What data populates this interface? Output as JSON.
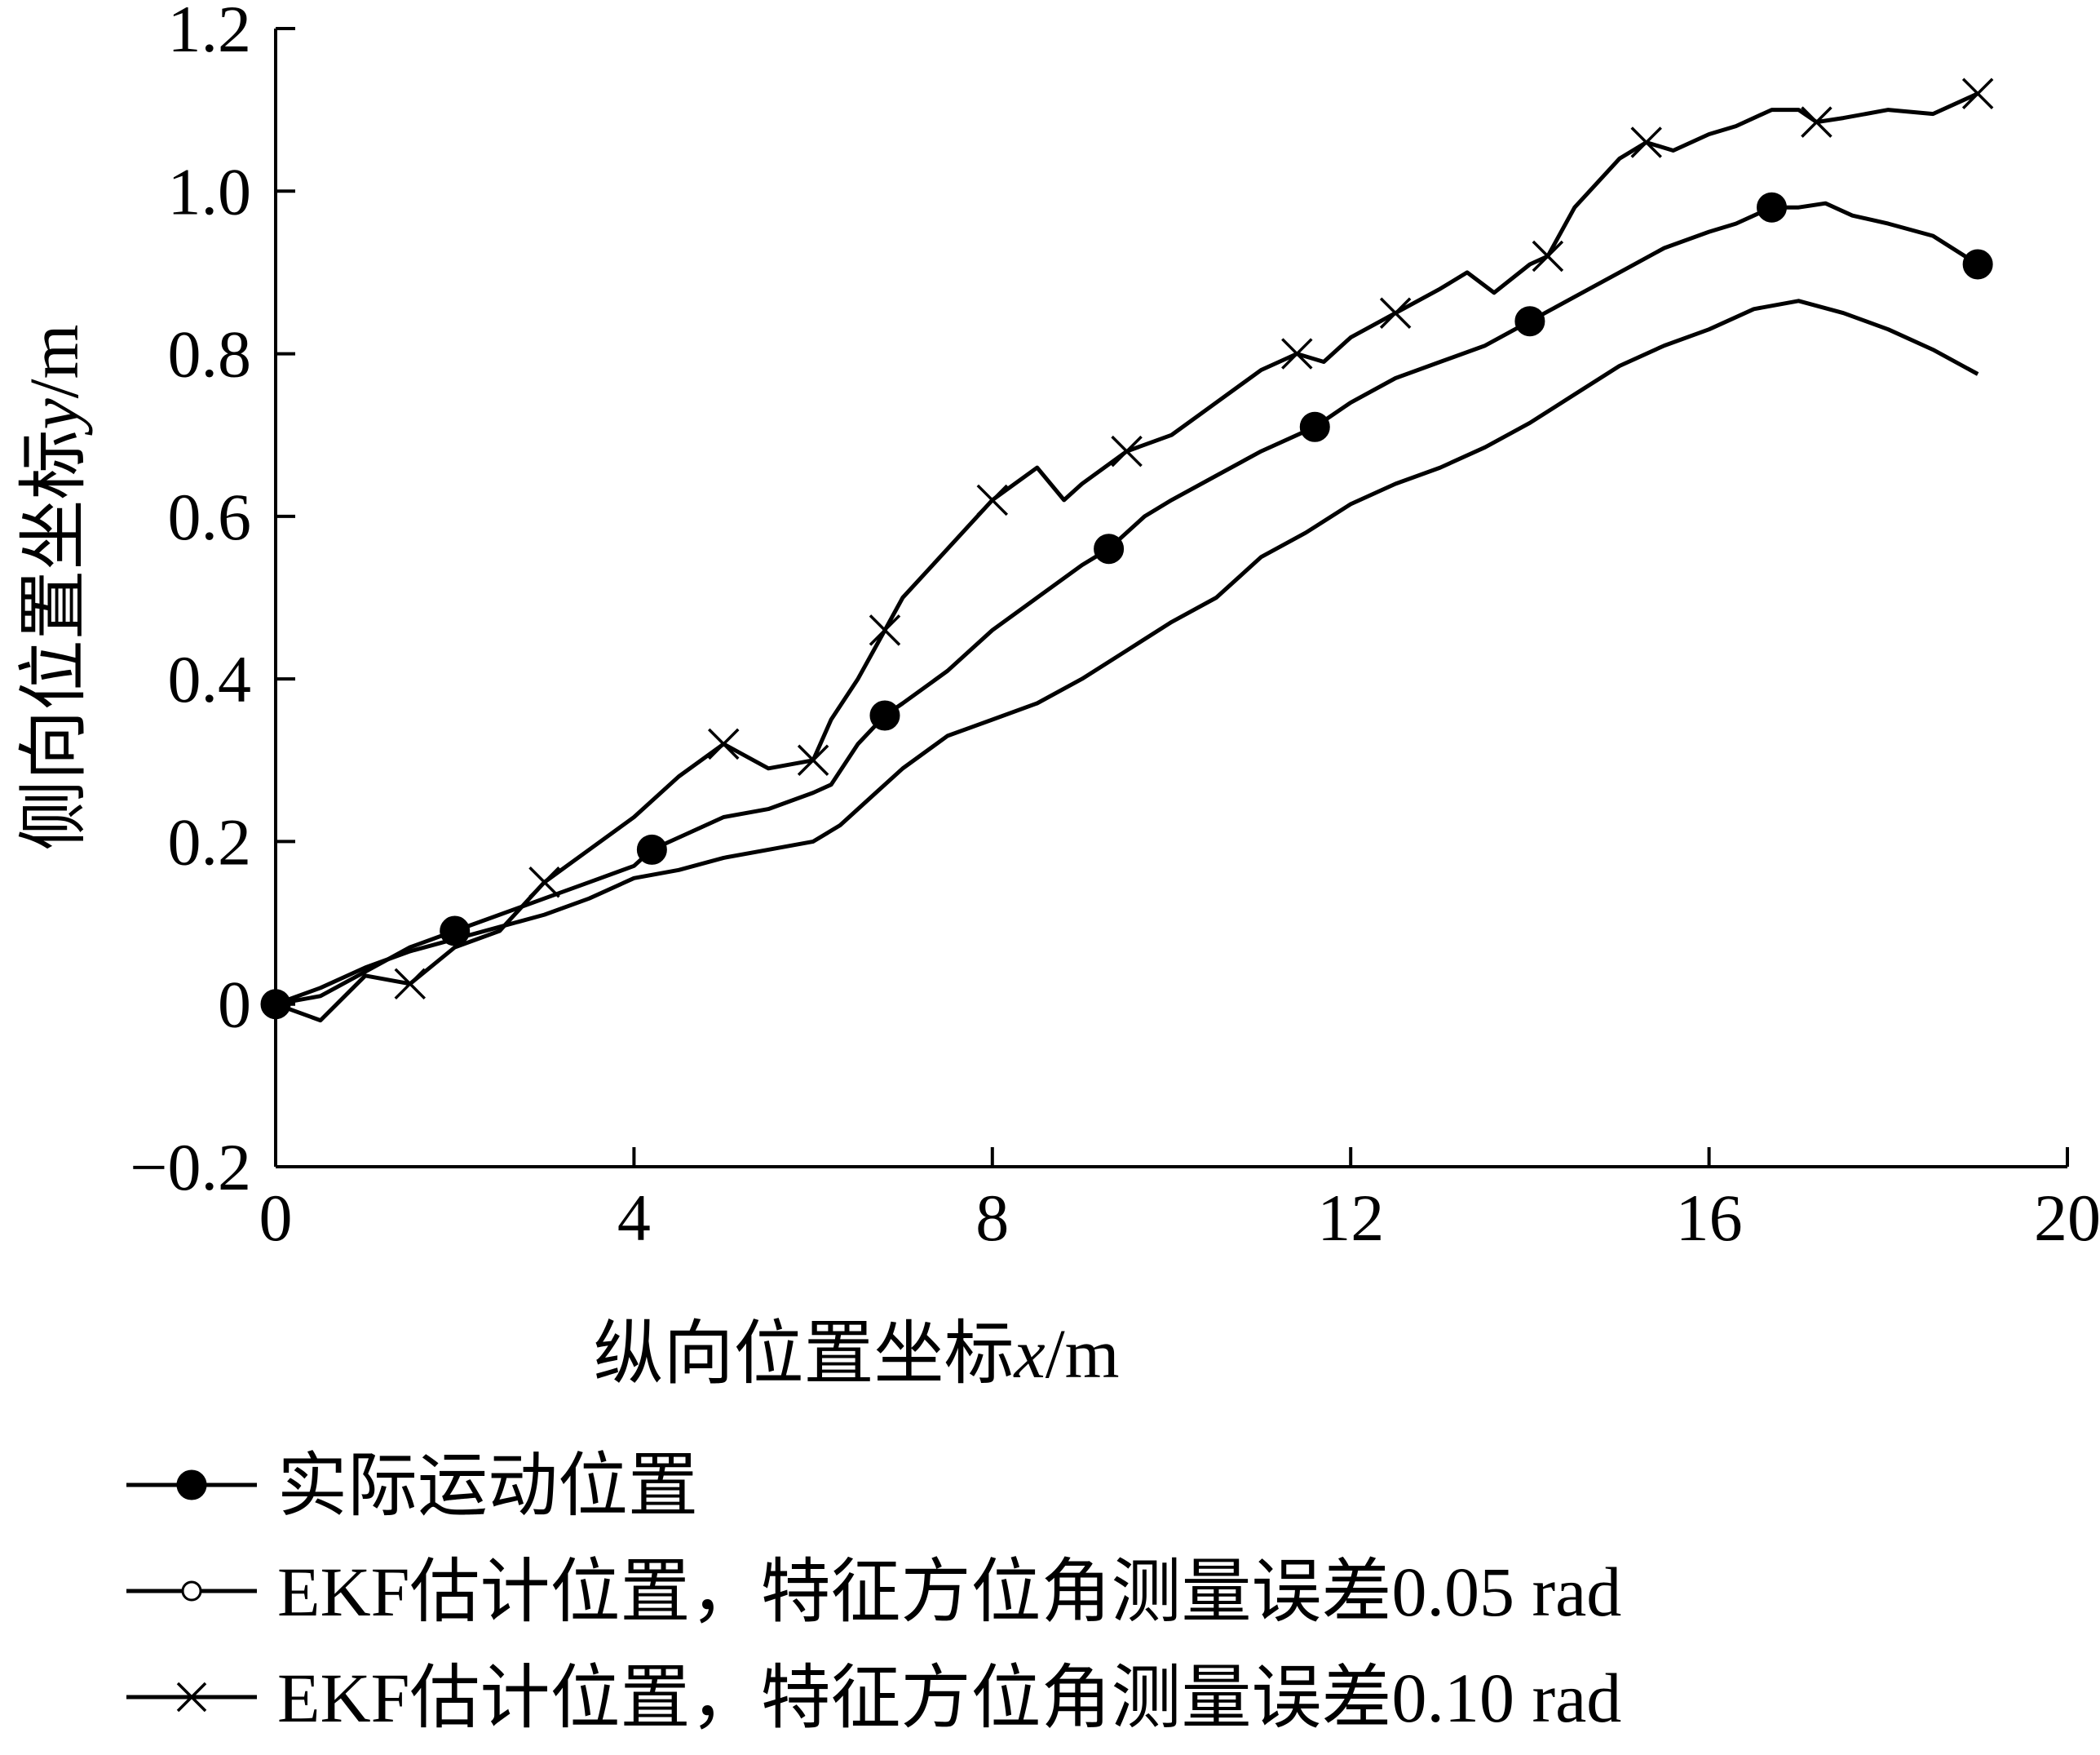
{
  "chart_data": {
    "type": "line",
    "title": "",
    "xlabel": "纵向位置坐标",
    "xlabel_var": "x",
    "xlabel_unit": "/m",
    "ylabel": "侧向位置坐标",
    "ylabel_var": "y",
    "ylabel_unit": "/m",
    "xlim": [
      0,
      20
    ],
    "ylim": [
      -0.2,
      1.2
    ],
    "x_ticks": [
      "0",
      "4",
      "8",
      "12",
      "16",
      "20"
    ],
    "x_tick_values": [
      0,
      4,
      8,
      12,
      16,
      20
    ],
    "y_ticks": [
      "-0.2",
      "0",
      "0.2",
      "0.4",
      "0.6",
      "0.8",
      "1.0",
      "1.2"
    ],
    "y_tick_values": [
      -0.2,
      0,
      0.2,
      0.4,
      0.6,
      0.8,
      1.0,
      1.2
    ],
    "grid": false,
    "legend_position": "bottom",
    "series": [
      {
        "name": "实际运动位置",
        "marker": "filled-circle",
        "color": "#000000",
        "x": [
          0,
          0.5,
          1.0,
          1.5,
          2.0,
          2.5,
          3.0,
          3.5,
          4.0,
          4.2,
          4.6,
          5.0,
          5.5,
          6.0,
          6.2,
          6.5,
          6.8,
          7.0,
          7.5,
          8.0,
          8.5,
          9.0,
          9.3,
          9.7,
          10.0,
          10.5,
          11.0,
          11.6,
          12.0,
          12.5,
          13.0,
          13.5,
          14.0,
          14.5,
          15.0,
          15.5,
          16.0,
          16.3,
          16.7,
          17.0,
          17.3,
          17.6,
          18.0,
          18.5,
          19.0
        ],
        "y": [
          0,
          0.01,
          0.04,
          0.07,
          0.09,
          0.11,
          0.13,
          0.15,
          0.17,
          0.19,
          0.21,
          0.23,
          0.24,
          0.26,
          0.27,
          0.32,
          0.355,
          0.37,
          0.41,
          0.46,
          0.5,
          0.54,
          0.56,
          0.6,
          0.62,
          0.65,
          0.68,
          0.71,
          0.74,
          0.77,
          0.79,
          0.81,
          0.84,
          0.87,
          0.9,
          0.93,
          0.95,
          0.96,
          0.98,
          0.98,
          0.985,
          0.97,
          0.96,
          0.945,
          0.91
        ]
      },
      {
        "name": "EKF估计位置，特征方位角测量误差0.05 rad",
        "marker": "open-circle",
        "color": "#000000",
        "x": [
          0,
          0.5,
          1.0,
          1.5,
          2.0,
          2.5,
          3.0,
          3.5,
          4.0,
          4.5,
          5.0,
          5.5,
          6.0,
          6.3,
          6.7,
          7.0,
          7.5,
          8.0,
          8.5,
          9.0,
          9.5,
          10.0,
          10.5,
          11.0,
          11.5,
          12.0,
          12.5,
          13.0,
          13.5,
          14.0,
          14.5,
          15.0,
          15.5,
          16.0,
          16.5,
          17.0,
          17.5,
          18.0,
          18.5,
          19.0
        ],
        "y": [
          0,
          0.02,
          0.045,
          0.065,
          0.08,
          0.095,
          0.11,
          0.13,
          0.155,
          0.165,
          0.18,
          0.19,
          0.2,
          0.22,
          0.26,
          0.29,
          0.33,
          0.35,
          0.37,
          0.4,
          0.435,
          0.47,
          0.5,
          0.55,
          0.58,
          0.615,
          0.64,
          0.66,
          0.685,
          0.715,
          0.75,
          0.785,
          0.81,
          0.83,
          0.855,
          0.865,
          0.85,
          0.83,
          0.805,
          0.775
        ]
      },
      {
        "name": "EKF估计位置，特征方位角测量误差0.10 rad",
        "marker": "cross",
        "color": "#000000",
        "x": [
          0,
          0.5,
          1.0,
          1.5,
          2.0,
          2.5,
          3.0,
          3.5,
          4.0,
          4.5,
          5.0,
          5.5,
          6.0,
          6.2,
          6.5,
          6.8,
          7.0,
          7.5,
          8.0,
          8.5,
          8.8,
          9.0,
          9.5,
          10.0,
          10.5,
          11.0,
          11.4,
          11.7,
          12.0,
          12.5,
          13.0,
          13.3,
          13.6,
          14.0,
          14.2,
          14.5,
          15.0,
          15.3,
          15.6,
          16.0,
          16.3,
          16.7,
          17.0,
          17.2,
          17.5,
          18.0,
          18.5,
          19.0
        ],
        "y": [
          0,
          -0.02,
          0.035,
          0.025,
          0.07,
          0.09,
          0.15,
          0.19,
          0.23,
          0.28,
          0.32,
          0.29,
          0.3,
          0.35,
          0.4,
          0.46,
          0.5,
          0.56,
          0.62,
          0.66,
          0.62,
          0.64,
          0.68,
          0.7,
          0.74,
          0.78,
          0.8,
          0.79,
          0.82,
          0.85,
          0.88,
          0.9,
          0.875,
          0.91,
          0.92,
          0.98,
          1.04,
          1.06,
          1.05,
          1.07,
          1.08,
          1.1,
          1.1,
          1.085,
          1.09,
          1.1,
          1.095,
          1.12
        ]
      }
    ]
  }
}
